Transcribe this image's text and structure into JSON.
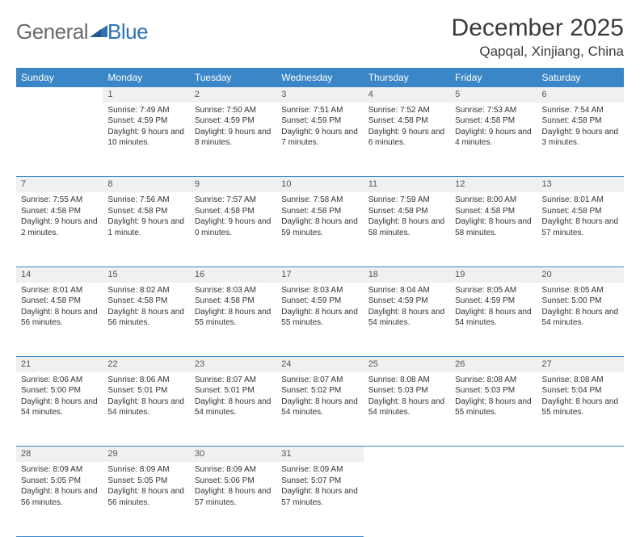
{
  "logo": {
    "text1": "General",
    "text2": "Blue"
  },
  "title": {
    "month": "December 2025",
    "location": "Qapqal, Xinjiang, China"
  },
  "colors": {
    "header_bg": "#3b86c7",
    "header_text": "#ffffff",
    "daynum_bg": "#eef0f1",
    "border": "#3b86c7",
    "logo_gray": "#6a6a6a",
    "logo_blue": "#2f72b5"
  },
  "day_headers": [
    "Sunday",
    "Monday",
    "Tuesday",
    "Wednesday",
    "Thursday",
    "Friday",
    "Saturday"
  ],
  "weeks": [
    [
      {
        "n": "",
        "sr": "",
        "ss": "",
        "dl": ""
      },
      {
        "n": "1",
        "sr": "7:49 AM",
        "ss": "4:59 PM",
        "dl": "9 hours and 10 minutes."
      },
      {
        "n": "2",
        "sr": "7:50 AM",
        "ss": "4:59 PM",
        "dl": "9 hours and 8 minutes."
      },
      {
        "n": "3",
        "sr": "7:51 AM",
        "ss": "4:59 PM",
        "dl": "9 hours and 7 minutes."
      },
      {
        "n": "4",
        "sr": "7:52 AM",
        "ss": "4:58 PM",
        "dl": "9 hours and 6 minutes."
      },
      {
        "n": "5",
        "sr": "7:53 AM",
        "ss": "4:58 PM",
        "dl": "9 hours and 4 minutes."
      },
      {
        "n": "6",
        "sr": "7:54 AM",
        "ss": "4:58 PM",
        "dl": "9 hours and 3 minutes."
      }
    ],
    [
      {
        "n": "7",
        "sr": "7:55 AM",
        "ss": "4:58 PM",
        "dl": "9 hours and 2 minutes."
      },
      {
        "n": "8",
        "sr": "7:56 AM",
        "ss": "4:58 PM",
        "dl": "9 hours and 1 minute."
      },
      {
        "n": "9",
        "sr": "7:57 AM",
        "ss": "4:58 PM",
        "dl": "9 hours and 0 minutes."
      },
      {
        "n": "10",
        "sr": "7:58 AM",
        "ss": "4:58 PM",
        "dl": "8 hours and 59 minutes."
      },
      {
        "n": "11",
        "sr": "7:59 AM",
        "ss": "4:58 PM",
        "dl": "8 hours and 58 minutes."
      },
      {
        "n": "12",
        "sr": "8:00 AM",
        "ss": "4:58 PM",
        "dl": "8 hours and 58 minutes."
      },
      {
        "n": "13",
        "sr": "8:01 AM",
        "ss": "4:58 PM",
        "dl": "8 hours and 57 minutes."
      }
    ],
    [
      {
        "n": "14",
        "sr": "8:01 AM",
        "ss": "4:58 PM",
        "dl": "8 hours and 56 minutes."
      },
      {
        "n": "15",
        "sr": "8:02 AM",
        "ss": "4:58 PM",
        "dl": "8 hours and 56 minutes."
      },
      {
        "n": "16",
        "sr": "8:03 AM",
        "ss": "4:58 PM",
        "dl": "8 hours and 55 minutes."
      },
      {
        "n": "17",
        "sr": "8:03 AM",
        "ss": "4:59 PM",
        "dl": "8 hours and 55 minutes."
      },
      {
        "n": "18",
        "sr": "8:04 AM",
        "ss": "4:59 PM",
        "dl": "8 hours and 54 minutes."
      },
      {
        "n": "19",
        "sr": "8:05 AM",
        "ss": "4:59 PM",
        "dl": "8 hours and 54 minutes."
      },
      {
        "n": "20",
        "sr": "8:05 AM",
        "ss": "5:00 PM",
        "dl": "8 hours and 54 minutes."
      }
    ],
    [
      {
        "n": "21",
        "sr": "8:06 AM",
        "ss": "5:00 PM",
        "dl": "8 hours and 54 minutes."
      },
      {
        "n": "22",
        "sr": "8:06 AM",
        "ss": "5:01 PM",
        "dl": "8 hours and 54 minutes."
      },
      {
        "n": "23",
        "sr": "8:07 AM",
        "ss": "5:01 PM",
        "dl": "8 hours and 54 minutes."
      },
      {
        "n": "24",
        "sr": "8:07 AM",
        "ss": "5:02 PM",
        "dl": "8 hours and 54 minutes."
      },
      {
        "n": "25",
        "sr": "8:08 AM",
        "ss": "5:03 PM",
        "dl": "8 hours and 54 minutes."
      },
      {
        "n": "26",
        "sr": "8:08 AM",
        "ss": "5:03 PM",
        "dl": "8 hours and 55 minutes."
      },
      {
        "n": "27",
        "sr": "8:08 AM",
        "ss": "5:04 PM",
        "dl": "8 hours and 55 minutes."
      }
    ],
    [
      {
        "n": "28",
        "sr": "8:09 AM",
        "ss": "5:05 PM",
        "dl": "8 hours and 56 minutes."
      },
      {
        "n": "29",
        "sr": "8:09 AM",
        "ss": "5:05 PM",
        "dl": "8 hours and 56 minutes."
      },
      {
        "n": "30",
        "sr": "8:09 AM",
        "ss": "5:06 PM",
        "dl": "8 hours and 57 minutes."
      },
      {
        "n": "31",
        "sr": "8:09 AM",
        "ss": "5:07 PM",
        "dl": "8 hours and 57 minutes."
      },
      {
        "n": "",
        "sr": "",
        "ss": "",
        "dl": ""
      },
      {
        "n": "",
        "sr": "",
        "ss": "",
        "dl": ""
      },
      {
        "n": "",
        "sr": "",
        "ss": "",
        "dl": ""
      }
    ]
  ],
  "labels": {
    "sunrise": "Sunrise:",
    "sunset": "Sunset:",
    "daylight": "Daylight:"
  }
}
